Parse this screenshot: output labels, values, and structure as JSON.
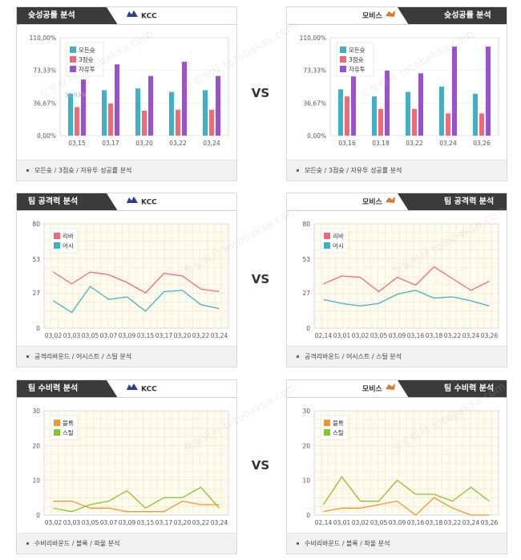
{
  "vs_label": "VS",
  "watermark": "토토박사 totobaksa.com",
  "colors": {
    "all": "#3fb1c6",
    "three": "#ee6a79",
    "free": "#9b4fd1",
    "rebound": "#ee6a79",
    "assist": "#3fb1c6",
    "block": "#f39530",
    "steal": "#86c62c"
  },
  "panels": [
    {
      "id": "kcc-success",
      "title": "슛성공률 분석",
      "team": "KCC",
      "side": "left",
      "footer": "모든슛 / 3점슛 / 자유투 성공률 분석",
      "chart_data": {
        "type": "bar",
        "categories": [
          "03,15",
          "03,17",
          "03,20",
          "03,22",
          "03,24"
        ],
        "ylim": [
          0,
          110
        ],
        "yticks": [
          "110,00%",
          "73,33%",
          "36,67%",
          "0,00%"
        ],
        "tickvals": [
          110,
          73.33,
          36.67,
          0
        ],
        "series": [
          {
            "name": "모든슛",
            "color": "#3fb1c6",
            "values": [
              47,
              51,
              53,
              49,
              51
            ]
          },
          {
            "name": "3점슛",
            "color": "#ee6a79",
            "values": [
              32,
              36,
              28,
              29,
              29
            ]
          },
          {
            "name": "자유투",
            "color": "#9b4fd1",
            "values": [
              63,
              80,
              67,
              83,
              67
            ]
          }
        ],
        "annotation": "31,03%"
      }
    },
    {
      "id": "mobis-success",
      "title": "슛성공률 분석",
      "team": "모비스",
      "side": "right",
      "footer": "모든슛 / 3점슛 / 자유투 성공률 분석",
      "chart_data": {
        "type": "bar",
        "categories": [
          "03,16",
          "03,18",
          "03,22",
          "03,24",
          "03,26"
        ],
        "ylim": [
          0,
          110
        ],
        "yticks": [
          "110,00%",
          "73,33%",
          "36,67%",
          "0,00%"
        ],
        "tickvals": [
          110,
          73.33,
          36.67,
          0
        ],
        "series": [
          {
            "name": "모든슛",
            "color": "#3fb1c6",
            "values": [
              52,
              44,
              49,
              55,
              47
            ]
          },
          {
            "name": "3점슛",
            "color": "#ee6a79",
            "values": [
              44,
              30,
              30,
              25,
              25
            ]
          },
          {
            "name": "자유투",
            "color": "#9b4fd1",
            "values": [
              100,
              73,
              70,
              100,
              100
            ]
          }
        ]
      }
    },
    {
      "id": "kcc-attack",
      "title": "팀 공격력 분석",
      "team": "KCC",
      "side": "left",
      "footer": "공격리바운드 / 어시스트 / 스틸 분석",
      "chart_data": {
        "type": "line",
        "categories": [
          "03,02",
          "03,03",
          "03,05",
          "03,07",
          "03,09",
          "03,15",
          "03,17",
          "03,20",
          "03,22",
          "03,24"
        ],
        "ylim": [
          0,
          80
        ],
        "yticks": [
          "80",
          "53",
          "27",
          "0"
        ],
        "tickvals": [
          80,
          53,
          27,
          0
        ],
        "series": [
          {
            "name": "리바",
            "color": "#ee6a79",
            "values": [
              43,
              34,
              43,
              41,
              35,
              27,
              42,
              40,
              30,
              28
            ]
          },
          {
            "name": "어시",
            "color": "#3fb1c6",
            "values": [
              21,
              12,
              32,
              22,
              24,
              13,
              28,
              29,
              18,
              15
            ]
          }
        ]
      }
    },
    {
      "id": "mobis-attack",
      "title": "팀 공격력 분석",
      "team": "모비스",
      "side": "right",
      "footer": "공격리바운드 / 어시스트 / 스틸 분석",
      "chart_data": {
        "type": "line",
        "categories": [
          "02,14",
          "03,01",
          "03,02",
          "03,05",
          "03,09",
          "03,16",
          "03,18",
          "03,22",
          "03,24",
          "03,26"
        ],
        "ylim": [
          0,
          80
        ],
        "yticks": [
          "80",
          "53",
          "27",
          "0"
        ],
        "tickvals": [
          80,
          53,
          27,
          0
        ],
        "series": [
          {
            "name": "리바",
            "color": "#ee6a79",
            "values": [
              34,
              40,
              39,
              28,
              39,
              33,
              47,
              38,
              29,
              36
            ]
          },
          {
            "name": "어시",
            "color": "#3fb1c6",
            "values": [
              22,
              19,
              17,
              19,
              26,
              29,
              23,
              24,
              21,
              17
            ]
          }
        ]
      }
    },
    {
      "id": "kcc-defense",
      "title": "팀 수비력 분석",
      "team": "KCC",
      "side": "left",
      "footer": "수비리바운드 / 블록 / 파울 분석",
      "chart_data": {
        "type": "line",
        "categories": [
          "03,02",
          "03,03",
          "03,05",
          "03,07",
          "03,09",
          "03,15",
          "03,17",
          "03,20",
          "03,22",
          "03,24"
        ],
        "ylim": [
          0,
          30
        ],
        "yticks": [
          "30",
          "20",
          "10",
          "0"
        ],
        "tickvals": [
          30,
          20,
          10,
          0
        ],
        "series": [
          {
            "name": "블록",
            "color": "#f39530",
            "values": [
              4,
              4,
              2,
              2,
              1,
              1,
              1,
              4,
              3,
              3
            ]
          },
          {
            "name": "스틸",
            "color": "#86c62c",
            "values": [
              2,
              1,
              3,
              4,
              7,
              2,
              5,
              5,
              8,
              2
            ]
          }
        ]
      }
    },
    {
      "id": "mobis-defense",
      "title": "팀 수비력 분석",
      "team": "모비스",
      "side": "right",
      "footer": "수비리바운드 / 블록 / 파울 분석",
      "chart_data": {
        "type": "line",
        "categories": [
          "02,14",
          "03,01",
          "03,02",
          "03,05",
          "03,09",
          "03,16",
          "03,18",
          "03,22",
          "03,24",
          "03,26"
        ],
        "ylim": [
          0,
          30
        ],
        "yticks": [
          "30",
          "20",
          "10",
          "0"
        ],
        "tickvals": [
          30,
          20,
          10,
          0
        ],
        "series": [
          {
            "name": "블록",
            "color": "#f39530",
            "values": [
              1,
              2,
              2,
              3,
              4,
              0,
              5,
              2,
              0,
              0
            ]
          },
          {
            "name": "스틸",
            "color": "#86c62c",
            "values": [
              3,
              11,
              4,
              4,
              10,
              6,
              6,
              4,
              8,
              4
            ]
          }
        ]
      }
    }
  ]
}
